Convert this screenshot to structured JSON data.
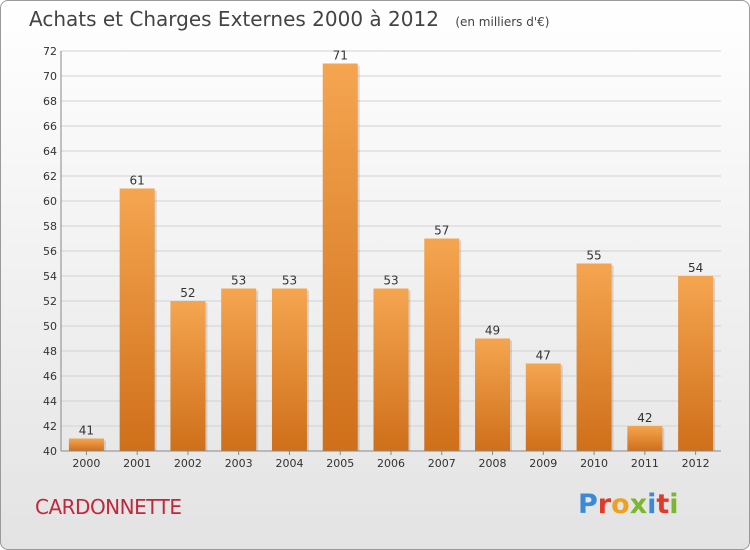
{
  "header": {
    "title": "Achats et Charges Externes 2000 à 2012",
    "unit": "(en milliers d'€)"
  },
  "footer": {
    "commune": "CARDONNETTE",
    "logo": "Proxiti"
  },
  "colors": {
    "bar_light": "#f5a550",
    "bar_dark": "#cf6f1a",
    "commune": "#c0283c",
    "logo": [
      "#3b8ad6",
      "#e23a2a",
      "#f0a020",
      "#7ab62e",
      "#3b8ad6",
      "#e23a2a",
      "#7ab62e"
    ]
  },
  "chart_data": {
    "type": "bar",
    "title": "Achats et Charges Externes 2000 à 2012",
    "subtitle": "(en milliers d'€)",
    "categories": [
      "2000",
      "2001",
      "2002",
      "2003",
      "2004",
      "2005",
      "2006",
      "2007",
      "2008",
      "2009",
      "2010",
      "2011",
      "2012"
    ],
    "values": [
      41,
      61,
      52,
      53,
      53,
      71,
      53,
      57,
      49,
      47,
      55,
      42,
      54
    ],
    "ylim": [
      40,
      72
    ],
    "yticks": [
      40,
      42,
      44,
      46,
      48,
      50,
      52,
      54,
      56,
      58,
      60,
      62,
      64,
      66,
      68,
      70,
      72
    ],
    "grid": true,
    "xlabel": "",
    "ylabel": ""
  }
}
